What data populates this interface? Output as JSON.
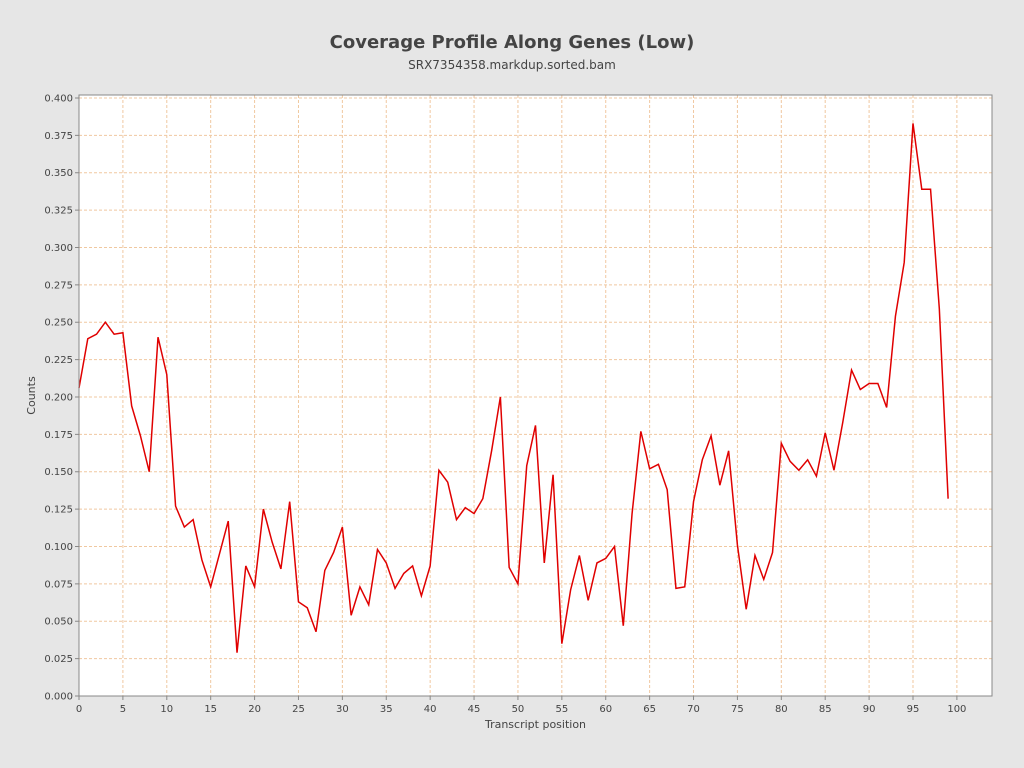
{
  "chart_data": {
    "type": "line",
    "title": "Coverage Profile Along Genes (Low)",
    "subtitle": "SRX7354358.markdup.sorted.bam",
    "xlabel": "Transcript position",
    "ylabel": "Counts",
    "xlim": [
      0,
      104
    ],
    "ylim": [
      0,
      0.402
    ],
    "x_ticks": [
      0,
      5,
      10,
      15,
      20,
      25,
      30,
      35,
      40,
      45,
      50,
      55,
      60,
      65,
      70,
      75,
      80,
      85,
      90,
      95,
      100
    ],
    "x_tick_labels": [
      "0",
      "5",
      "10",
      "15",
      "20",
      "25",
      "30",
      "35",
      "40",
      "45",
      "50",
      "55",
      "60",
      "65",
      "70",
      "75",
      "80",
      "85",
      "90",
      "95",
      "100"
    ],
    "y_ticks": [
      0.0,
      0.025,
      0.05,
      0.075,
      0.1,
      0.125,
      0.15,
      0.175,
      0.2,
      0.225,
      0.25,
      0.275,
      0.3,
      0.325,
      0.35,
      0.375,
      0.4
    ],
    "y_tick_labels": [
      "0.000",
      "0.025",
      "0.050",
      "0.075",
      "0.100",
      "0.125",
      "0.150",
      "0.175",
      "0.200",
      "0.225",
      "0.250",
      "0.275",
      "0.300",
      "0.325",
      "0.350",
      "0.375",
      "0.400"
    ],
    "grid": true,
    "colors": {
      "background": "#e6e6e6",
      "plot_background": "#ffffff",
      "grid": "#f0c8a0",
      "series": "#e00000"
    },
    "series": [
      {
        "values": [
          [
            0,
            0.206
          ],
          [
            1,
            0.239
          ],
          [
            2,
            0.242
          ],
          [
            3,
            0.25
          ],
          [
            4,
            0.242
          ],
          [
            5,
            0.243
          ],
          [
            6,
            0.194
          ],
          [
            7,
            0.174
          ],
          [
            8,
            0.15
          ],
          [
            9,
            0.24
          ],
          [
            10,
            0.215
          ],
          [
            11,
            0.127
          ],
          [
            12,
            0.113
          ],
          [
            13,
            0.118
          ],
          [
            14,
            0.091
          ],
          [
            15,
            0.073
          ],
          [
            16,
            0.095
          ],
          [
            17,
            0.117
          ],
          [
            18,
            0.029
          ],
          [
            19,
            0.087
          ],
          [
            20,
            0.073
          ],
          [
            21,
            0.125
          ],
          [
            22,
            0.103
          ],
          [
            23,
            0.085
          ],
          [
            24,
            0.13
          ],
          [
            25,
            0.063
          ],
          [
            26,
            0.059
          ],
          [
            27,
            0.043
          ],
          [
            28,
            0.084
          ],
          [
            29,
            0.096
          ],
          [
            30,
            0.113
          ],
          [
            31,
            0.054
          ],
          [
            32,
            0.073
          ],
          [
            33,
            0.061
          ],
          [
            34,
            0.098
          ],
          [
            35,
            0.089
          ],
          [
            36,
            0.072
          ],
          [
            37,
            0.082
          ],
          [
            38,
            0.087
          ],
          [
            39,
            0.067
          ],
          [
            40,
            0.087
          ],
          [
            41,
            0.151
          ],
          [
            42,
            0.143
          ],
          [
            43,
            0.118
          ],
          [
            44,
            0.126
          ],
          [
            45,
            0.122
          ],
          [
            46,
            0.132
          ],
          [
            47,
            0.164
          ],
          [
            48,
            0.2
          ],
          [
            49,
            0.086
          ],
          [
            50,
            0.075
          ],
          [
            51,
            0.154
          ],
          [
            52,
            0.181
          ],
          [
            53,
            0.089
          ],
          [
            54,
            0.148
          ],
          [
            55,
            0.035
          ],
          [
            56,
            0.071
          ],
          [
            57,
            0.094
          ],
          [
            58,
            0.064
          ],
          [
            59,
            0.089
          ],
          [
            60,
            0.092
          ],
          [
            61,
            0.1
          ],
          [
            62,
            0.047
          ],
          [
            63,
            0.122
          ],
          [
            64,
            0.177
          ],
          [
            65,
            0.152
          ],
          [
            66,
            0.155
          ],
          [
            67,
            0.138
          ],
          [
            68,
            0.072
          ],
          [
            69,
            0.073
          ],
          [
            70,
            0.13
          ],
          [
            71,
            0.158
          ],
          [
            72,
            0.174
          ],
          [
            73,
            0.141
          ],
          [
            74,
            0.164
          ],
          [
            75,
            0.101
          ],
          [
            76,
            0.058
          ],
          [
            77,
            0.094
          ],
          [
            78,
            0.078
          ],
          [
            79,
            0.096
          ],
          [
            80,
            0.169
          ],
          [
            81,
            0.157
          ],
          [
            82,
            0.151
          ],
          [
            83,
            0.158
          ],
          [
            84,
            0.147
          ],
          [
            85,
            0.176
          ],
          [
            86,
            0.151
          ],
          [
            87,
            0.183
          ],
          [
            88,
            0.218
          ],
          [
            89,
            0.205
          ],
          [
            90,
            0.209
          ],
          [
            91,
            0.209
          ],
          [
            92,
            0.193
          ],
          [
            93,
            0.254
          ],
          [
            94,
            0.29
          ],
          [
            95,
            0.383
          ],
          [
            96,
            0.339
          ],
          [
            97,
            0.339
          ],
          [
            98,
            0.259
          ],
          [
            99,
            0.132
          ]
        ]
      }
    ]
  }
}
